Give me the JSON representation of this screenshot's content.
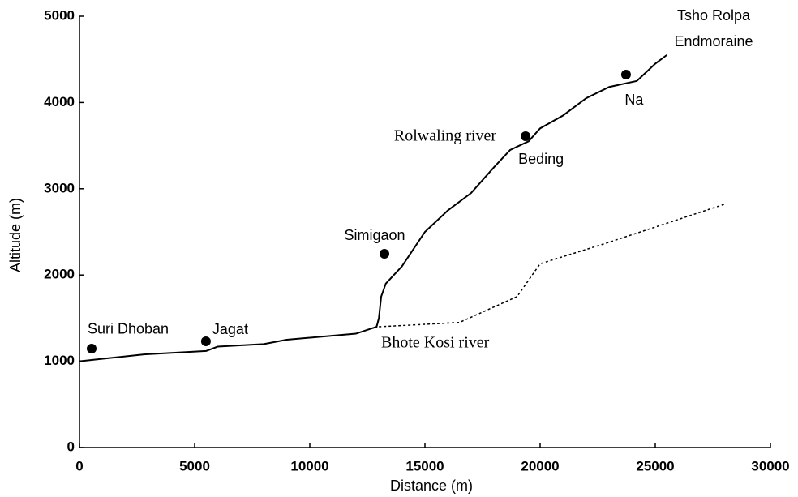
{
  "chart_data": {
    "type": "line",
    "xlabel": "Distance (m)",
    "ylabel": "Altitude (m)",
    "xlim": [
      0,
      30000
    ],
    "ylim": [
      0,
      5000
    ],
    "xticks": [
      0,
      5000,
      10000,
      15000,
      20000,
      25000,
      30000
    ],
    "yticks": [
      0,
      1000,
      2000,
      3000,
      4000,
      5000
    ],
    "grid": false,
    "series": [
      {
        "name": "Rolwaling river",
        "color": "#000000",
        "style": "solid",
        "x": [
          0,
          2800,
          5500,
          6000,
          8000,
          9000,
          12000,
          12900,
          13000,
          13100,
          13300,
          14000,
          15000,
          16000,
          17000,
          18000,
          18700,
          19500,
          20000,
          21000,
          22000,
          23000,
          24200,
          25000,
          25500
        ],
        "values": [
          1000,
          1080,
          1120,
          1170,
          1200,
          1250,
          1320,
          1400,
          1500,
          1750,
          1900,
          2100,
          2500,
          2750,
          2950,
          3250,
          3450,
          3550,
          3700,
          3850,
          4050,
          4180,
          4250,
          4450,
          4550
        ]
      },
      {
        "name": "Bhote Kosi river",
        "color": "#000000",
        "style": "dotted",
        "x": [
          13000,
          16500,
          19000,
          20000,
          23000,
          28000
        ],
        "values": [
          1400,
          1450,
          1750,
          2130,
          2380,
          2820
        ]
      }
    ],
    "points": {
      "labels": [
        "Suri Dhoban",
        "Jagat",
        "Simigaon",
        "Beding",
        "Na"
      ],
      "x": [
        528,
        5490,
        13240,
        19370,
        23730
      ],
      "values": [
        1147,
        1231,
        2246,
        3609,
        4323
      ]
    },
    "annotations": [
      "Tsho Rolpa",
      "Endmoraine"
    ]
  }
}
